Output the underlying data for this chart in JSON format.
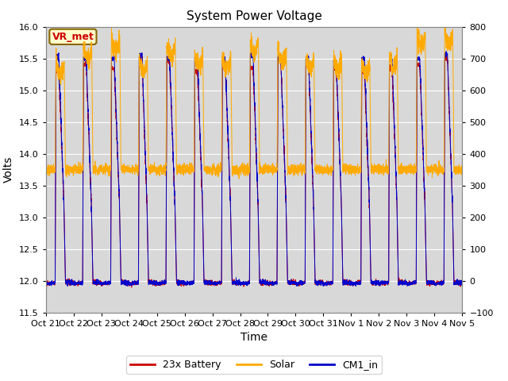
{
  "title": "System Power Voltage",
  "xlabel": "Time",
  "ylabel_left": "Volts",
  "ylim_left": [
    11.5,
    16.0
  ],
  "ylim_right": [
    -100,
    800
  ],
  "yticks_left": [
    11.5,
    12.0,
    12.5,
    13.0,
    13.5,
    14.0,
    14.5,
    15.0,
    15.5,
    16.0
  ],
  "yticks_right": [
    -100,
    0,
    100,
    200,
    300,
    400,
    500,
    600,
    700,
    800
  ],
  "x_tick_labels": [
    "Oct 21",
    "Oct 22",
    "Oct 23",
    "Oct 24",
    "Oct 25",
    "Oct 26",
    "Oct 27",
    "Oct 28",
    "Oct 29",
    "Oct 30",
    "Oct 31",
    "Nov 1",
    "Nov 2",
    "Nov 3",
    "Nov 4",
    "Nov 5"
  ],
  "num_days": 15,
  "color_battery": "#cc0000",
  "color_solar": "#ffaa00",
  "color_cm1": "#0000cc",
  "bg_color": "#d8d8d8",
  "legend_labels": [
    "23x Battery",
    "Solar",
    "CM1_in"
  ],
  "vr_met_label": "VR_met",
  "vr_met_bg": "#ffffcc",
  "vr_met_border": "#886600",
  "vr_met_text_color": "#cc0000",
  "figsize": [
    6.4,
    4.8
  ],
  "dpi": 100,
  "grid_color": "#ffffff",
  "solar_night": 350,
  "battery_night": 11.97,
  "battery_day_peak": 15.35,
  "cm1_day_peak": 15.5,
  "solar_day_peak": 720
}
